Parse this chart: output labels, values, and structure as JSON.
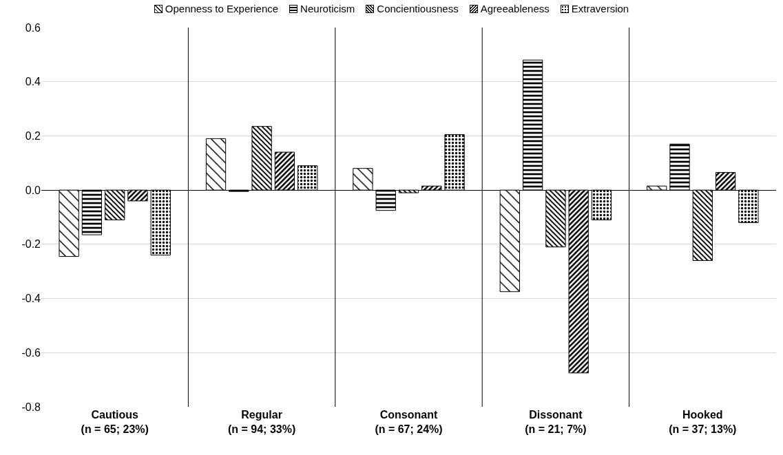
{
  "chart_data": {
    "type": "bar",
    "categories": [
      "Cautious\n(n = 65; 23%)",
      "Regular\n(n = 94; 33%)",
      "Consonant\n(n = 67; 24%)",
      "Dissonant\n(n = 21; 7%)",
      "Hooked\n(n = 37; 13%)"
    ],
    "series": [
      {
        "name": "Openness to Experience",
        "color": "#000000",
        "values": [
          -0.245,
          0.19,
          0.08,
          -0.375,
          0.015
        ]
      },
      {
        "name": "Neuroticism",
        "color": "#000000",
        "values": [
          -0.165,
          -0.005,
          -0.075,
          0.48,
          0.17
        ]
      },
      {
        "name": "Concientiousness",
        "color": "#000000",
        "values": [
          -0.11,
          0.235,
          -0.01,
          -0.21,
          -0.26
        ]
      },
      {
        "name": "Agreeableness",
        "color": "#000000",
        "values": [
          -0.04,
          0.14,
          0.015,
          -0.675,
          0.065
        ]
      },
      {
        "name": "Extraversion",
        "color": "#000000",
        "values": [
          -0.24,
          0.09,
          0.205,
          -0.11,
          -0.12
        ]
      }
    ],
    "ylim": [
      -0.8,
      0.6
    ],
    "yticks": [
      {
        "value": -0.8,
        "label": "-0.8"
      },
      {
        "value": -0.6,
        "label": "-0.6"
      },
      {
        "value": -0.4,
        "label": "-0.4"
      },
      {
        "value": -0.2,
        "label": "-0.2"
      },
      {
        "value": 0,
        "label": "0.0"
      },
      {
        "value": 0.2,
        "label": "0.2"
      },
      {
        "value": 0.4,
        "label": "0.4"
      },
      {
        "value": 0.6,
        "label": "0.6"
      }
    ],
    "grid": true,
    "legend": "top"
  }
}
